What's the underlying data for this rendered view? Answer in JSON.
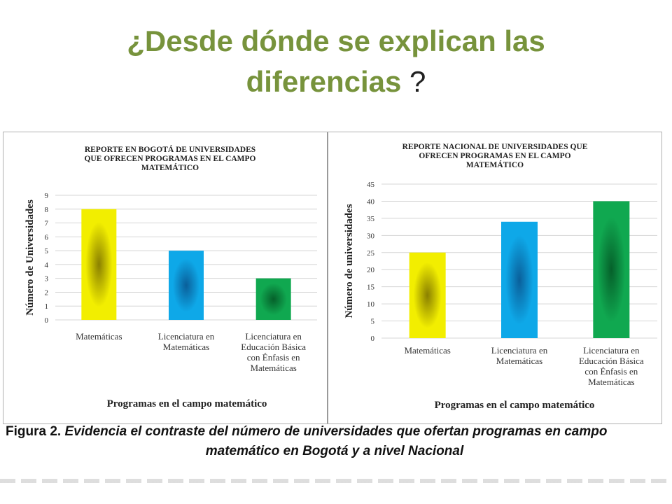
{
  "slide": {
    "title": "¿Desde dónde se explican las diferencias",
    "title_mark": "?"
  },
  "caption": {
    "label": "Figura 2.",
    "text_line1": "Evidencia el contraste del número de universidades que ofertan programas en campo",
    "text_line2": "matemático en Bogotá y a nivel Nacional"
  },
  "colors": {
    "title": "#77933c",
    "yellow": "#f2ee00",
    "blue": "#0ea8e8",
    "green": "#10a850"
  },
  "chart_data": [
    {
      "type": "bar",
      "title": [
        "REPORTE EN BOGOTÁ DE UNIVERSIDADES",
        "QUE OFRECEN PROGRAMAS EN EL CAMPO",
        "MATEMÁTICO"
      ],
      "categories": [
        [
          "Matemáticas"
        ],
        [
          "Licenciatura en",
          "Matemáticas"
        ],
        [
          "Licenciatura en",
          "Educación Básica",
          "con Énfasis en",
          "Matemáticas"
        ]
      ],
      "values": [
        8,
        5,
        3
      ],
      "colors": [
        "yellow",
        "blue",
        "green"
      ],
      "ylabel": "Número de Universidades",
      "xlabel": "Programas en el campo matemático",
      "ylim": [
        0,
        9
      ],
      "yticks": [
        0,
        1,
        2,
        3,
        4,
        5,
        6,
        7,
        8,
        9
      ],
      "grid": true
    },
    {
      "type": "bar",
      "title": [
        "REPORTE NACIONAL DE UNIVERSIDADES QUE",
        "OFRECEN PROGRAMAS EN EL CAMPO",
        "MATEMÁTICO"
      ],
      "categories": [
        [
          "Matemáticas"
        ],
        [
          "Licenciatura en",
          "Matemáticas"
        ],
        [
          "Licenciatura en",
          "Educación Básica",
          "con Énfasis en",
          "Matemáticas"
        ]
      ],
      "values": [
        25,
        34,
        40
      ],
      "colors": [
        "yellow",
        "blue",
        "green"
      ],
      "ylabel": "Número de universidades",
      "xlabel": "Programas en el campo matemático",
      "ylim": [
        0,
        45
      ],
      "yticks": [
        0,
        5,
        10,
        15,
        20,
        25,
        30,
        35,
        40,
        45
      ],
      "grid": true
    }
  ]
}
